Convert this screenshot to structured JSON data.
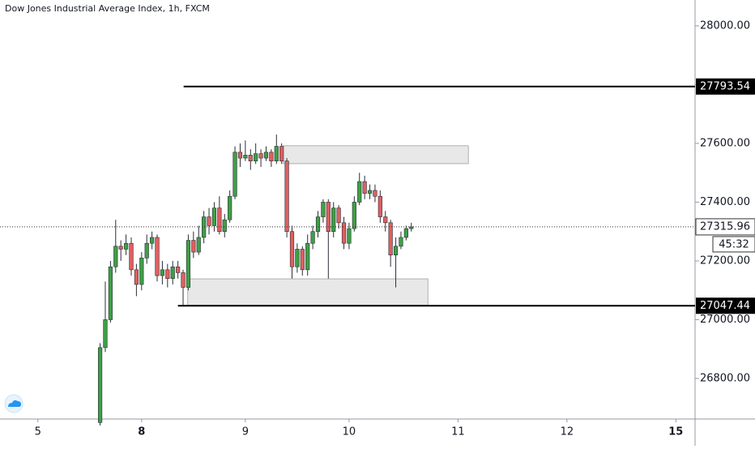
{
  "chart_data": {
    "type": "candlestick",
    "title": "Dow Jones Industrial Average Index, 1h, FXCM",
    "x": [
      12,
      13,
      14,
      15,
      16,
      17,
      18,
      19,
      20,
      21,
      22,
      23,
      24,
      25,
      26,
      27,
      28,
      29,
      30,
      31,
      32,
      33,
      34,
      35,
      36,
      37,
      38,
      39,
      40,
      41,
      42,
      43,
      44,
      45,
      46,
      47,
      48,
      49,
      50,
      51,
      52,
      53,
      54,
      55,
      56,
      57,
      58,
      59,
      60,
      61,
      62,
      63,
      64,
      65,
      66,
      67,
      68,
      69,
      70,
      71,
      72
    ],
    "open": [
      26650,
      26905,
      27000,
      27180,
      27250,
      27240,
      27260,
      27170,
      27120,
      27210,
      27260,
      27280,
      27150,
      27170,
      27140,
      27180,
      27160,
      27110,
      27270,
      27230,
      27280,
      27350,
      27320,
      27380,
      27300,
      27340,
      27420,
      27570,
      27550,
      27560,
      27540,
      27565,
      27550,
      27570,
      27540,
      27590,
      27540,
      27300,
      27180,
      27240,
      27170,
      27260,
      27300,
      27350,
      27400,
      27300,
      27380,
      27330,
      27260,
      27310,
      27400,
      27470,
      27430,
      27440,
      27420,
      27350,
      27330,
      27220,
      27250,
      27280,
      27310
    ],
    "high": [
      26920,
      27130,
      27200,
      27340,
      27270,
      27290,
      27280,
      27190,
      27230,
      27290,
      27300,
      27290,
      27200,
      27190,
      27200,
      27200,
      27170,
      27290,
      27300,
      27320,
      27370,
      27380,
      27400,
      27420,
      27360,
      27440,
      27590,
      27600,
      27610,
      27580,
      27600,
      27580,
      27590,
      27580,
      27630,
      27600,
      27550,
      27320,
      27260,
      27250,
      27290,
      27320,
      27370,
      27410,
      27410,
      27400,
      27390,
      27350,
      27330,
      27420,
      27500,
      27490,
      27460,
      27460,
      27440,
      27370,
      27340,
      27280,
      27300,
      27320,
      27330
    ],
    "low": [
      26640,
      26890,
      26990,
      27160,
      27200,
      27220,
      27150,
      27080,
      27100,
      27190,
      27240,
      27130,
      27120,
      27110,
      27120,
      27140,
      27050,
      27100,
      27210,
      27220,
      27260,
      27290,
      27300,
      27290,
      27280,
      27330,
      27410,
      27520,
      27540,
      27510,
      27530,
      27520,
      27540,
      27520,
      27530,
      27530,
      27280,
      27140,
      27160,
      27150,
      27150,
      27240,
      27280,
      27330,
      27140,
      27280,
      27310,
      27240,
      27240,
      27300,
      27390,
      27410,
      27410,
      27400,
      27330,
      27300,
      27180,
      27110,
      27240,
      27270,
      27300
    ],
    "close": [
      26905,
      27000,
      27180,
      27250,
      27240,
      27260,
      27170,
      27120,
      27210,
      27260,
      27280,
      27150,
      27170,
      27140,
      27180,
      27160,
      27110,
      27270,
      27230,
      27280,
      27350,
      27320,
      27380,
      27300,
      27340,
      27420,
      27570,
      27550,
      27560,
      27540,
      27565,
      27550,
      27570,
      27540,
      27590,
      27540,
      27300,
      27180,
      27240,
      27170,
      27260,
      27300,
      27350,
      27400,
      27300,
      27380,
      27330,
      27260,
      27310,
      27400,
      27470,
      27430,
      27440,
      27420,
      27350,
      27330,
      27220,
      27250,
      27280,
      27310,
      27316
    ],
    "up_color": "#3f9f45",
    "down_color": "#e05f5f",
    "xlim": [
      -7.3,
      126.7
    ],
    "xticks": [
      {
        "value": 0,
        "label": "5"
      },
      {
        "value": 20,
        "label": "8"
      },
      {
        "value": 40,
        "label": "9"
      },
      {
        "value": 60,
        "label": "10"
      },
      {
        "value": 81,
        "label": "11"
      },
      {
        "value": 102,
        "label": "12"
      },
      {
        "value": 123,
        "label": "15"
      }
    ],
    "ylim": [
      26662,
      28088
    ],
    "yticks": [
      {
        "value": 26800,
        "label": "26800.00"
      },
      {
        "value": 27000,
        "label": "27000.00"
      },
      {
        "value": 27200,
        "label": "27200.00"
      },
      {
        "value": 27400,
        "label": "27400.00"
      },
      {
        "value": 27600,
        "label": "27600.00"
      },
      {
        "value": 27800,
        "label": "27800.00"
      },
      {
        "value": 28000,
        "label": "28000.00"
      }
    ],
    "levels": [
      {
        "value": 27793.54,
        "start": 28.1
      },
      {
        "value": 27047.44,
        "start": 27
      }
    ],
    "zones": [
      {
        "x": [
          47.3,
          83
        ],
        "y": [
          27531,
          27592
        ]
      },
      {
        "x": [
          28.9,
          75.2
        ],
        "y": [
          27048,
          27139
        ]
      }
    ],
    "last_price": {
      "value": 27315.96,
      "countdown": "45:32"
    }
  }
}
